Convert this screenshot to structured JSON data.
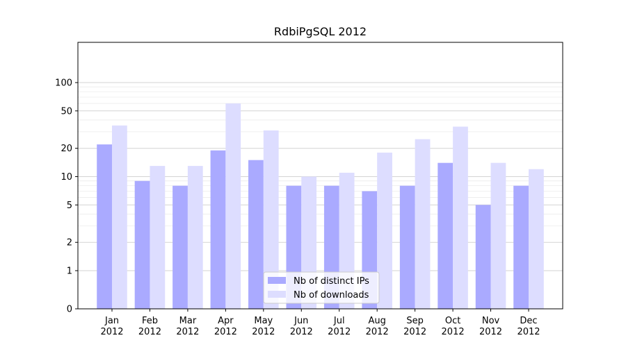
{
  "chart_data": {
    "type": "bar",
    "title": "RdbiPgSQL 2012",
    "xlabel": "",
    "ylabel": "",
    "yscale": "symlog",
    "ylim": [
      0,
      120
    ],
    "yticks": [
      0,
      1,
      2,
      5,
      10,
      20,
      50,
      100
    ],
    "ytick_labels": [
      "0",
      "1",
      "2",
      "5",
      "10",
      "20",
      "50",
      "100"
    ],
    "categories": [
      "Jan\n2012",
      "Feb\n2012",
      "Mar\n2012",
      "Apr\n2012",
      "May\n2012",
      "Jun\n2012",
      "Jul\n2012",
      "Aug\n2012",
      "Sep\n2012",
      "Oct\n2012",
      "Nov\n2012",
      "Dec\n2012"
    ],
    "category_lines": [
      [
        "Jan",
        "2012"
      ],
      [
        "Feb",
        "2012"
      ],
      [
        "Mar",
        "2012"
      ],
      [
        "Apr",
        "2012"
      ],
      [
        "May",
        "2012"
      ],
      [
        "Jun",
        "2012"
      ],
      [
        "Jul",
        "2012"
      ],
      [
        "Aug",
        "2012"
      ],
      [
        "Sep",
        "2012"
      ],
      [
        "Oct",
        "2012"
      ],
      [
        "Nov",
        "2012"
      ],
      [
        "Dec",
        "2012"
      ]
    ],
    "series": [
      {
        "name": "Nb of distinct IPs",
        "color": "#aaaaff",
        "values": [
          22,
          9,
          8,
          19,
          15,
          8,
          8,
          7,
          8,
          14,
          5,
          8
        ]
      },
      {
        "name": "Nb of downloads",
        "color": "#ddddff",
        "values": [
          35,
          13,
          13,
          60,
          31,
          10,
          11,
          18,
          25,
          34,
          14,
          12
        ]
      }
    ],
    "grid": true,
    "legend_position": "lower-center"
  }
}
